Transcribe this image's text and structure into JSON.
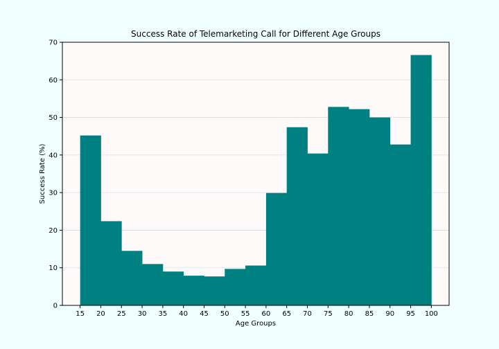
{
  "chart_data": {
    "type": "bar",
    "title": "Success Rate of Telemarketing Call for Different Age Groups",
    "xlabel": "Age Groups",
    "ylabel": "Success Rate (%)",
    "bin_edges": [
      15,
      20,
      25,
      30,
      35,
      40,
      45,
      50,
      55,
      60,
      65,
      70,
      75,
      80,
      85,
      90,
      95,
      100
    ],
    "values": [
      45.2,
      22.4,
      14.5,
      11.0,
      9.0,
      7.9,
      7.7,
      9.7,
      10.6,
      29.9,
      47.4,
      40.4,
      52.8,
      52.2,
      50.0,
      42.8,
      66.6
    ],
    "xticks": [
      "15",
      "20",
      "25",
      "30",
      "35",
      "40",
      "45",
      "50",
      "55",
      "60",
      "65",
      "70",
      "75",
      "80",
      "85",
      "90",
      "95",
      "100"
    ],
    "yticks": [
      "0",
      "10",
      "20",
      "30",
      "40",
      "50",
      "60",
      "70"
    ],
    "xlim": [
      10.7,
      104.3
    ],
    "ylim": [
      0,
      70
    ],
    "grid": "horizontal",
    "colors": {
      "bar": "#008080",
      "plot_background": "#fffafa",
      "figure_background": "#f0ffff",
      "grid": "#dddddd"
    }
  }
}
